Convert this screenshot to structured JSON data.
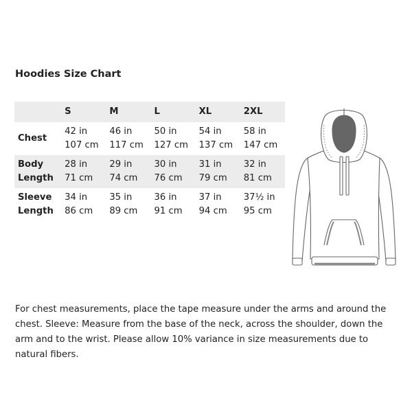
{
  "title": "Hoodies Size Chart",
  "table": {
    "sizes": [
      "S",
      "M",
      "L",
      "XL",
      "2XL"
    ],
    "rows": [
      {
        "label_1": "Chest",
        "label_2": "",
        "in": [
          "42 in",
          "46 in",
          "50 in",
          "54 in",
          "58 in"
        ],
        "cm": [
          "107 cm",
          "117 cm",
          "127 cm",
          "137 cm",
          "147 cm"
        ]
      },
      {
        "label_1": "Body",
        "label_2": "Length",
        "in": [
          "28 in",
          "29 in",
          "30 in",
          "31 in",
          "32 in"
        ],
        "cm": [
          "71 cm",
          "74 cm",
          "76 cm",
          "79 cm",
          "81 cm"
        ]
      },
      {
        "label_1": "Sleeve",
        "label_2": "Length",
        "in": [
          "34 in",
          "35 in",
          "36 in",
          "37 in",
          "37½ in"
        ],
        "cm": [
          "86 cm",
          "89 cm",
          "91 cm",
          "94 cm",
          "95 cm"
        ]
      }
    ]
  },
  "illustration": "hoodie-front-view",
  "note": "For chest measurements, place the tape measure under the arms and around the chest. Sleeve: Measure from the base of the neck, across the shoulder, down the arm and to the wrist. Please allow 10% variance in size measurements due to natural fibers."
}
